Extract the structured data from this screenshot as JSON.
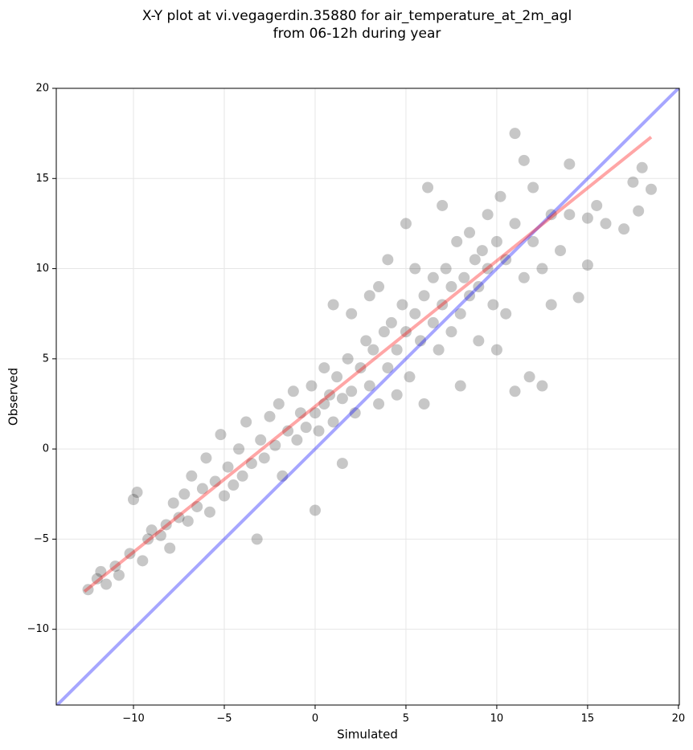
{
  "chart_data": {
    "type": "scatter",
    "title": "X-Y plot at vi.vegagerdin.35880 for air_temperature_at_2m_agl",
    "subtitle": "from 06-12h during year",
    "x_label": "Simulated",
    "y_label": "Observed",
    "xlim": [
      -14.25,
      20.05
    ],
    "ylim": [
      -14.2,
      20
    ],
    "xticks": [
      {
        "value": -10,
        "label": "−10"
      },
      {
        "value": -5,
        "label": "−5"
      },
      0,
      5,
      10,
      15,
      20
    ],
    "yticks": [
      {
        "value": -10,
        "label": "−10"
      },
      {
        "value": -5,
        "label": "−5"
      },
      0,
      5,
      10,
      15,
      20
    ],
    "grid": true,
    "color": "#000000",
    "x": [
      -12.5,
      -12,
      -11.8,
      -11.5,
      -11,
      -10.8,
      -10.2,
      -10,
      -9.8,
      -9.5,
      -9.2,
      -9,
      -8.5,
      -8.2,
      -8,
      -7.8,
      -7.5,
      -7.2,
      -7,
      -6.8,
      -6.5,
      -6.2,
      -6,
      -5.8,
      -5.5,
      -5.2,
      -5,
      -4.8,
      -4.5,
      -4.2,
      -4,
      -3.8,
      -3.5,
      -3.2,
      -3,
      -2.8,
      -2.5,
      -2.2,
      -2,
      -1.8,
      -1.5,
      -1.2,
      -1,
      -0.8,
      -0.5,
      -0.2,
      0,
      0,
      0.2,
      0.5,
      0.5,
      0.8,
      1,
      1,
      1.2,
      1.5,
      1.5,
      1.8,
      2,
      2,
      2.2,
      2.5,
      2.8,
      3,
      3,
      3.2,
      3.5,
      3.5,
      3.8,
      4,
      4,
      4.2,
      4.5,
      4.5,
      4.8,
      5,
      5,
      5.2,
      5.5,
      5.5,
      5.8,
      6,
      6,
      6.2,
      6.5,
      6.5,
      6.8,
      7,
      7,
      7.2,
      7.5,
      7.5,
      7.8,
      8,
      8,
      8.2,
      8.5,
      8.5,
      8.8,
      9,
      9,
      9.2,
      9.5,
      9.5,
      9.8,
      10,
      10,
      10.2,
      10.5,
      10.5,
      11,
      11,
      11,
      11.5,
      11.5,
      11.8,
      12,
      12,
      12.5,
      12.5,
      13,
      13,
      13.5,
      14,
      14,
      14.5,
      15,
      15,
      15.5,
      16,
      17,
      17.5,
      17.8,
      18,
      18.5
    ],
    "values": [
      -7.8,
      -7.2,
      -6.8,
      -7.5,
      -6.5,
      -7,
      -5.8,
      -2.8,
      -2.4,
      -6.2,
      -5,
      -4.5,
      -4.8,
      -4.2,
      -5.5,
      -3,
      -3.8,
      -2.5,
      -4,
      -1.5,
      -3.2,
      -2.2,
      -0.5,
      -3.5,
      -1.8,
      0.8,
      -2.6,
      -1,
      -2,
      0,
      -1.5,
      1.5,
      -0.8,
      -5,
      0.5,
      -0.5,
      1.8,
      0.2,
      2.5,
      -1.5,
      1,
      3.2,
      0.5,
      2,
      1.2,
      3.5,
      2,
      -3.4,
      1,
      4.5,
      2.5,
      3,
      1.5,
      8,
      4,
      2.8,
      -0.8,
      5,
      3.2,
      7.5,
      2,
      4.5,
      6,
      3.5,
      8.5,
      5.5,
      2.5,
      9,
      6.5,
      4.5,
      10.5,
      7,
      5.5,
      3,
      8,
      6.5,
      12.5,
      4,
      7.5,
      10,
      6,
      8.5,
      2.5,
      14.5,
      7,
      9.5,
      5.5,
      8,
      13.5,
      10,
      6.5,
      9,
      11.5,
      7.5,
      3.5,
      9.5,
      8.5,
      12,
      10.5,
      9,
      6,
      11,
      10,
      13,
      8,
      11.5,
      5.5,
      14,
      10.5,
      7.5,
      12.5,
      17.5,
      3.2,
      9.5,
      16,
      4,
      11.5,
      14.5,
      10,
      3.5,
      13,
      8,
      11,
      15.8,
      13,
      8.4,
      10.2,
      12.8,
      13.5,
      12.5,
      12.2,
      14.8,
      13.2,
      15.6,
      14.4
    ],
    "lines": [
      {
        "color": "#0000ff",
        "x": [
          -14.25,
          20.05
        ],
        "y": [
          -14.25,
          20.05
        ]
      },
      {
        "color": "#ff0000",
        "x": [
          -12.7,
          18.5
        ],
        "y": [
          -7.9,
          17.3
        ]
      }
    ]
  }
}
